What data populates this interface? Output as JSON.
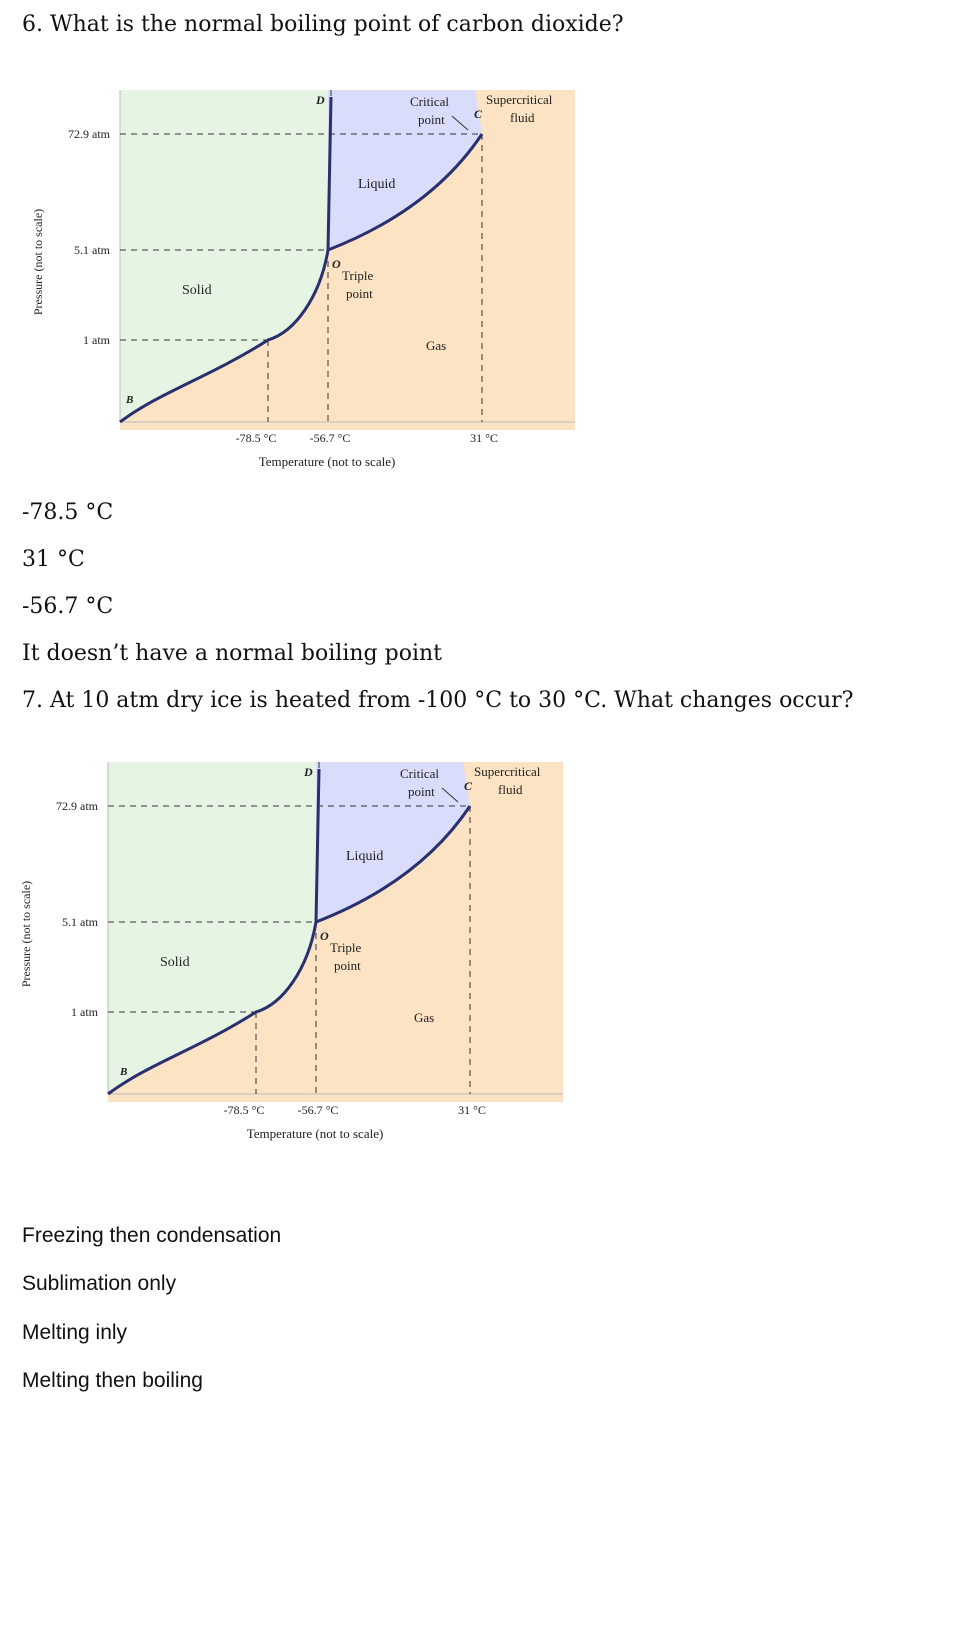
{
  "questions": [
    {
      "prompt": "6. What is the normal boiling point of carbon dioxide?",
      "options": [
        "-78.5 °C",
        "31 °C",
        "-56.7 °C",
        "It doesn’t have a normal boiling point"
      ]
    },
    {
      "prompt": "7. At 10 atm dry ice is heated from -100 °C to 30 °C. What changes occur?",
      "options": [
        "Freezing then condensation",
        "Sublimation only",
        "Melting inly",
        "Melting then boiling"
      ]
    }
  ],
  "phase_diagram": {
    "ylabel": "Pressure (not to scale)",
    "xlabel": "Temperature (not to scale)",
    "pressure_ticks": [
      "72.9 atm",
      "5.1 atm",
      "1 atm"
    ],
    "temperature_ticks": [
      "-78.5 °C",
      "-56.7 °C",
      "31 °C"
    ],
    "regions": {
      "solid": "Solid",
      "liquid": "Liquid",
      "gas": "Gas"
    },
    "point_labels": {
      "D": "D",
      "B": "B",
      "O": "O",
      "C": "C",
      "triple_line1": "Triple",
      "triple_line2": "point",
      "critical_line1": "Critical",
      "critical_line2": "point",
      "supercritical_line1": "Supercritical",
      "supercritical_line2": "fluid"
    },
    "colors": {
      "solid": "#e6f5e3",
      "liquid": "#d9dcfa",
      "gas": "#fbe3c3",
      "curve": "#2a2f6e",
      "dash": "#333333"
    }
  }
}
